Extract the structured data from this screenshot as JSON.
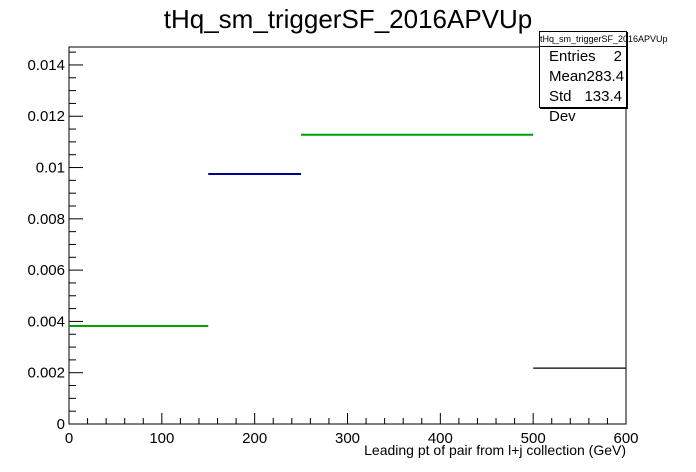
{
  "chart_data": {
    "type": "histogram",
    "title": "tHq_sm_triggerSF_2016APVUp",
    "xlabel": "Leading pt of pair from l+j collection (GeV)",
    "ylabel": "",
    "xlim": [
      0,
      600
    ],
    "ylim": [
      0,
      0.0147
    ],
    "x_ticks": [
      0,
      100,
      200,
      300,
      400,
      500,
      600
    ],
    "x_tick_labels": [
      "0",
      "100",
      "200",
      "300",
      "400",
      "500",
      "600"
    ],
    "y_ticks": [
      0,
      0.002,
      0.004,
      0.006,
      0.008,
      0.01,
      0.012,
      0.014
    ],
    "y_tick_labels": [
      "0",
      "0.002",
      "0.004",
      "0.006",
      "0.008",
      "0.01",
      "0.012",
      "0.014"
    ],
    "grid": false,
    "bins": [
      {
        "x_low": 0,
        "x_high": 150,
        "value": 0.00382,
        "color": "#00a000"
      },
      {
        "x_low": 150,
        "x_high": 250,
        "value": 0.00975,
        "color": "#00008b"
      },
      {
        "x_low": 250,
        "x_high": 500,
        "value": 0.01128,
        "color": "#00a000"
      },
      {
        "x_low": 500,
        "x_high": 600,
        "value": 0.00218,
        "color": "#000000"
      }
    ],
    "stats": {
      "title": "tHq_sm_triggerSF_2016APVUp",
      "rows": [
        {
          "label": "Entries",
          "value": "2"
        },
        {
          "label": "Mean",
          "value": "283.4"
        },
        {
          "label": "Std Dev",
          "value": "133.4"
        }
      ]
    }
  }
}
